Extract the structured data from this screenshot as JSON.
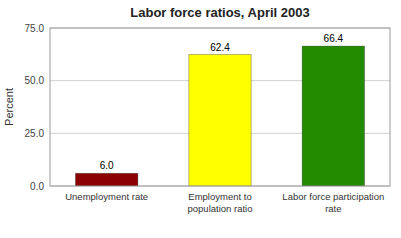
{
  "chart_data": {
    "type": "bar",
    "title": "Labor force ratios, April 2003",
    "categories": [
      "Unemployment rate",
      "Employment to\npopulation ratio",
      "Labor force participation\nrate"
    ],
    "values": [
      6.0,
      62.4,
      66.4
    ],
    "value_labels": [
      "6.0",
      "62.4",
      "66.4"
    ],
    "data_labels": true,
    "colors": [
      "#8B0000",
      "#FFFF00",
      "#228B00"
    ],
    "ylabel": "Percent",
    "ylim": [
      0,
      75
    ],
    "yticks": [
      {
        "value": 0.0,
        "label": "0.0"
      },
      {
        "value": 25.0,
        "label": "25.0"
      },
      {
        "value": 50.0,
        "label": "50.0"
      },
      {
        "value": 75.0,
        "label": "75.0"
      }
    ],
    "grid": true
  }
}
